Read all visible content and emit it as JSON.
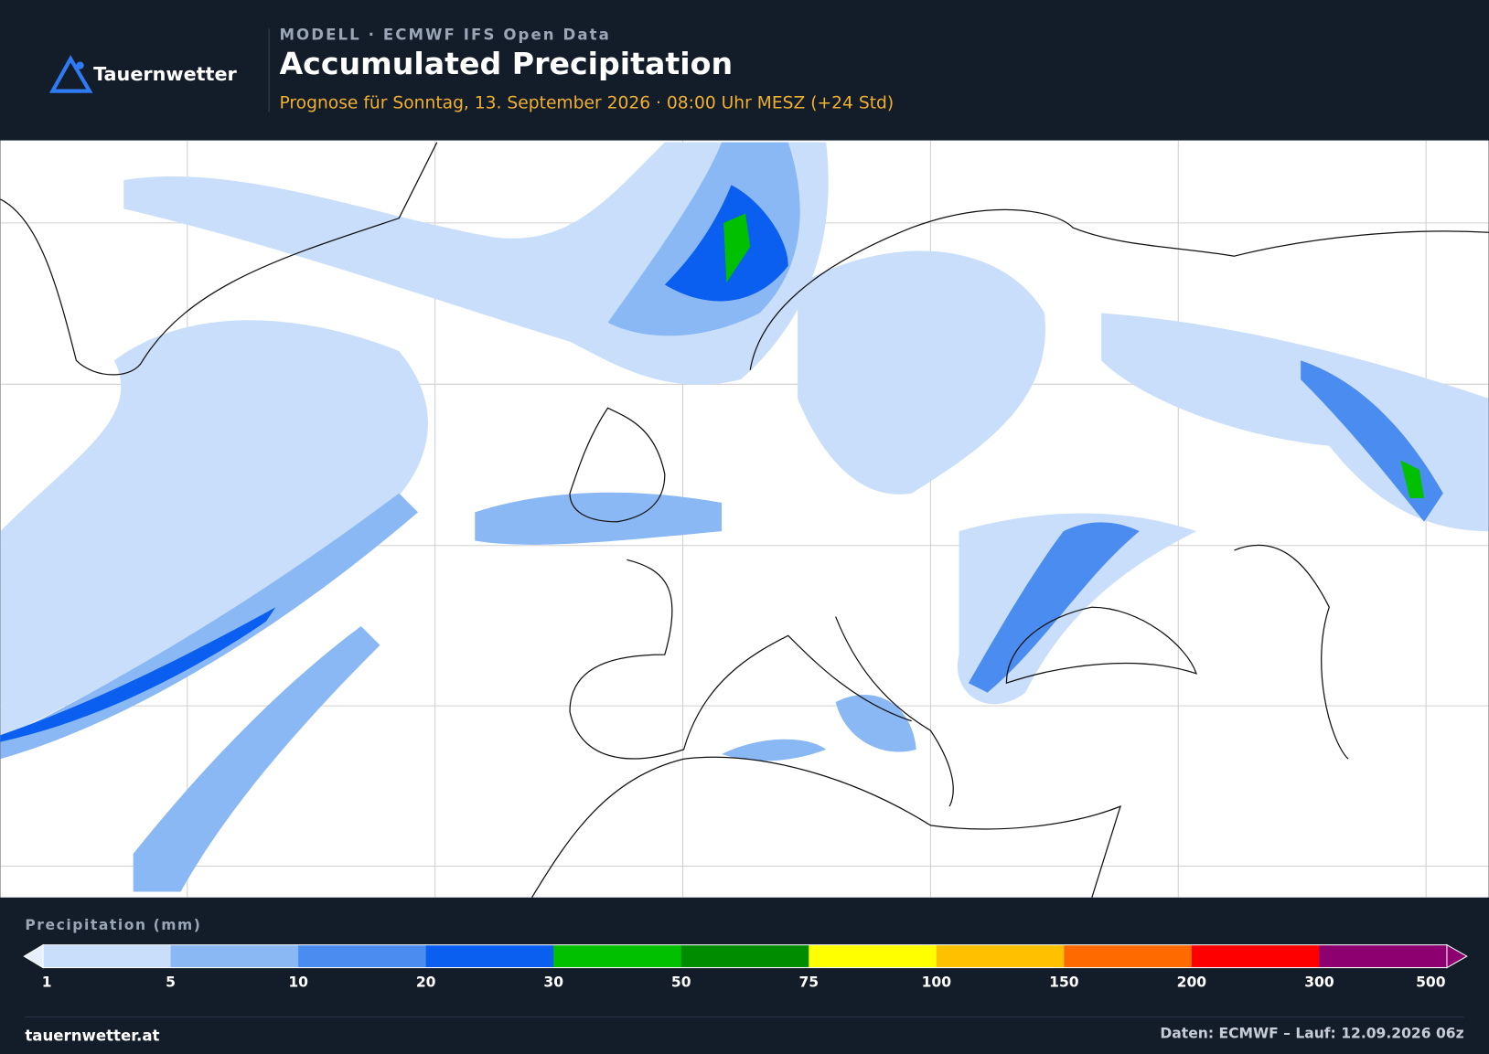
{
  "header": {
    "logo": "Tauernwetter",
    "model": "MODELL · ECMWF IFS Open Data",
    "title": "Accumulated Precipitation",
    "subtitle": "Prognose für Sonntag, 13. September 2026 · 08:00 Uhr MESZ  (+24 Std)"
  },
  "legend": {
    "title": "Precipitation (mm)",
    "ticks": [
      1,
      5,
      10,
      20,
      30,
      50,
      75,
      100,
      150,
      200,
      300,
      500
    ],
    "colors": [
      "#c9defa",
      "#8ab8f5",
      "#4a8cf0",
      "#0a5ef0",
      "#00c000",
      "#008c00",
      "#ffff00",
      "#ffc000",
      "#ff6a00",
      "#ff0000",
      "#8c0070"
    ],
    "under_color": "#e6f0ff",
    "over_color": "#8c0070"
  },
  "footer": {
    "site": "tauernwetter.at",
    "source": "Daten: ECMWF – Lauf: 12.09.2026 06z"
  }
}
